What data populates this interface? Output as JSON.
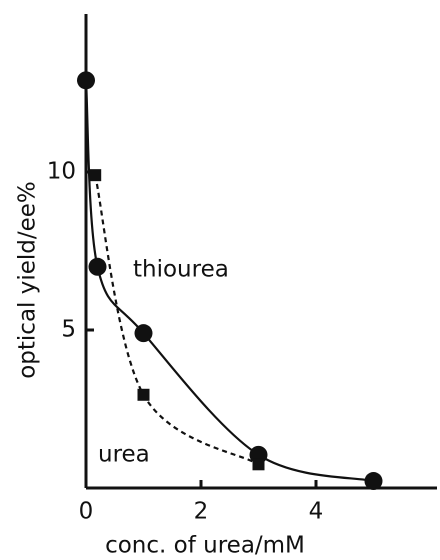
{
  "chart_data": {
    "type": "scatter",
    "xlabel": "conc. of urea/mM",
    "ylabel": "optical yield/ee%",
    "xlim": [
      0,
      6
    ],
    "ylim": [
      0,
      15
    ],
    "xticks": [
      0,
      2,
      4
    ],
    "yticks": [
      5,
      10
    ],
    "series": [
      {
        "name": "thiourea",
        "color": "#111111",
        "marker": "circle",
        "line": "solid",
        "x": [
          0,
          0.2,
          1,
          3,
          5
        ],
        "values": [
          12.9,
          7.0,
          4.9,
          1.05,
          0.22
        ]
      },
      {
        "name": "urea",
        "color": "#111111",
        "marker": "square",
        "line": "dashed",
        "x": [
          0.16,
          1,
          3
        ],
        "values": [
          9.9,
          2.95,
          0.75
        ]
      }
    ]
  }
}
